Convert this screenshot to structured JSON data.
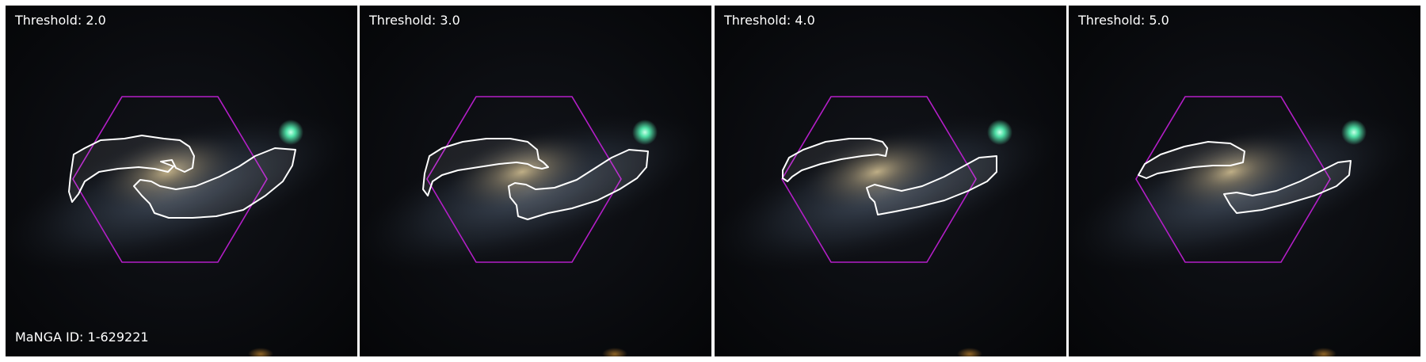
{
  "panels": [
    {
      "label": "Threshold: 2.0"
    },
    {
      "label": "Threshold: 3.0"
    },
    {
      "label": "Threshold: 4.0"
    },
    {
      "label": "Threshold: 5.0"
    }
  ],
  "galaxy_id": "MaNGA ID: 1-629221",
  "colors": {
    "contour": "#ffffff",
    "hexagon": "#b41ec8",
    "background": "#07080a",
    "star": "#4fe0a6",
    "galaxy_core": "#b3a37d",
    "galaxy_arms": "#8a9db6"
  },
  "icons": {
    "star": "foreground-star-icon"
  }
}
